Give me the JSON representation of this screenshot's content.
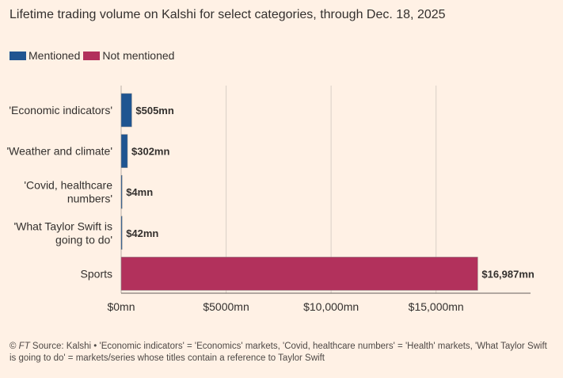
{
  "chart_data": {
    "type": "bar",
    "orientation": "horizontal",
    "title": "Lifetime trading volume on Kalshi for select categories, through Dec. 18, 2025",
    "categories": [
      [
        "'Economic indicators'"
      ],
      [
        "'Weather and climate'"
      ],
      [
        "'Covid, healthcare",
        "numbers'"
      ],
      [
        "'What Taylor Swift is",
        "going to do'"
      ],
      [
        "Sports"
      ]
    ],
    "values": [
      505,
      302,
      4,
      42,
      16987
    ],
    "labels": [
      "$505mn",
      "$302mn",
      "$4mn",
      "$42mn",
      "$16,987mn"
    ],
    "groups": [
      "Mentioned",
      "Mentioned",
      "Mentioned",
      "Mentioned",
      "Not mentioned"
    ],
    "legend": [
      {
        "name": "Mentioned",
        "color": "#1f5591"
      },
      {
        "name": "Not mentioned",
        "color": "#b2315c"
      }
    ],
    "xlim": [
      0,
      19500
    ],
    "xticks": [
      0,
      5000,
      10000,
      15000
    ],
    "xtick_labels": [
      "$0mn",
      "$5000mn",
      "$10,000mn",
      "$15,000mn"
    ],
    "grid": true,
    "legend_position": "top-left"
  },
  "footer": {
    "ft": "FT",
    "text": " Source: Kalshi • 'Economic indicators' = 'Economics' markets, 'Covid, healthcare numbers' = 'Health' markets, 'What Taylor Swift is going to do' = markets/series whose titles contain a reference to Taylor Swift",
    "copyright": "© "
  }
}
